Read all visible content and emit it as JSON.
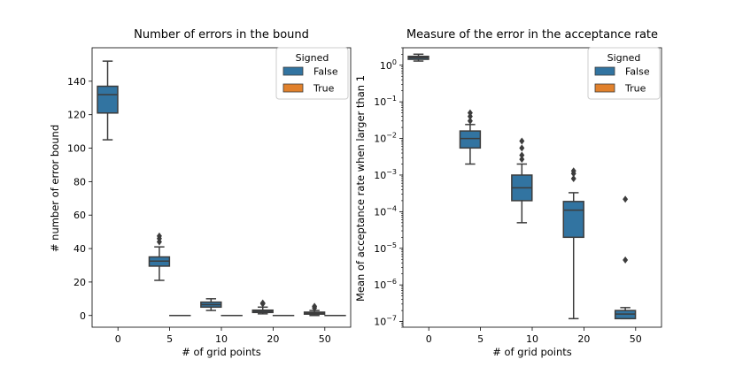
{
  "chart_data": [
    {
      "type": "box",
      "title": "Number of errors in the bound",
      "xlabel": "# of grid points",
      "ylabel": "# number of error bound",
      "yscale": "linear",
      "ylim": [
        -7,
        160
      ],
      "yticks": [
        0,
        20,
        40,
        60,
        80,
        100,
        120,
        140
      ],
      "yticklabels": [
        "0",
        "20",
        "40",
        "60",
        "80",
        "100",
        "120",
        "140"
      ],
      "categories": [
        "0",
        "5",
        "10",
        "20",
        "50"
      ],
      "legend": {
        "title": "Signed",
        "entries": [
          "False",
          "True"
        ],
        "position": "upper right"
      },
      "series": [
        {
          "name": "False",
          "color": "#3274a1",
          "boxes": [
            {
              "category": "0",
              "whislo": 105,
              "q1": 121,
              "med": 132,
              "q3": 137,
              "whishi": 152,
              "fliers": []
            },
            {
              "category": "5",
              "whislo": 21,
              "q1": 29.5,
              "med": 32.5,
              "q3": 35,
              "whishi": 41,
              "fliers": [
                44,
                46,
                47.5
              ]
            },
            {
              "category": "10",
              "whislo": 3,
              "q1": 5,
              "med": 6.5,
              "q3": 8,
              "whishi": 10,
              "fliers": []
            },
            {
              "category": "20",
              "whislo": 1,
              "q1": 1.8,
              "med": 2.5,
              "q3": 3.2,
              "whishi": 5,
              "fliers": [
                7,
                7.5
              ]
            },
            {
              "category": "50",
              "whislo": 0,
              "q1": 0.8,
              "med": 1.5,
              "q3": 2,
              "whishi": 3,
              "fliers": [
                4.5,
                5.5
              ]
            }
          ]
        },
        {
          "name": "True",
          "color": "#e1812c",
          "boxes": [
            {
              "category": "0",
              "empty": true
            },
            {
              "category": "5",
              "whislo": 0,
              "q1": 0,
              "med": 0,
              "q3": 0,
              "whishi": 0,
              "fliers": []
            },
            {
              "category": "10",
              "whislo": 0,
              "q1": 0,
              "med": 0,
              "q3": 0,
              "whishi": 0,
              "fliers": []
            },
            {
              "category": "20",
              "whislo": 0,
              "q1": 0,
              "med": 0,
              "q3": 0,
              "whishi": 0,
              "fliers": []
            },
            {
              "category": "50",
              "whislo": 0,
              "q1": 0,
              "med": 0,
              "q3": 0,
              "whishi": 0,
              "fliers": []
            }
          ]
        }
      ]
    },
    {
      "type": "box",
      "title": "Measure of the error in the acceptance rate",
      "xlabel": "# of grid points",
      "ylabel": "Mean of acceptance rate when larger than 1",
      "yscale": "log",
      "ylim": [
        7e-08,
        3
      ],
      "yticks": [
        1,
        0.1,
        0.01,
        0.001,
        0.0001,
        1e-05,
        1e-06,
        1e-07
      ],
      "yticklabels": [
        "10^0",
        "10^−1",
        "10^−2",
        "10^−3",
        "10^−4",
        "10^−5",
        "10^−6",
        "10^−7"
      ],
      "categories": [
        "0",
        "5",
        "10",
        "20",
        "50"
      ],
      "legend": {
        "title": "Signed",
        "entries": [
          "False",
          "True"
        ],
        "position": "upper right"
      },
      "series": [
        {
          "name": "False",
          "color": "#3274a1",
          "boxes": [
            {
              "category": "0",
              "whislo": 1.3,
              "q1": 1.45,
              "med": 1.6,
              "q3": 1.75,
              "whishi": 2.0,
              "fliers": []
            },
            {
              "category": "5",
              "whislo": 0.002,
              "q1": 0.0055,
              "med": 0.01,
              "q3": 0.016,
              "whishi": 0.024,
              "fliers": [
                0.03,
                0.04,
                0.05
              ]
            },
            {
              "category": "10",
              "whislo": 5e-05,
              "q1": 0.0002,
              "med": 0.00045,
              "q3": 0.001,
              "whishi": 0.002,
              "fliers": [
                0.0027,
                0.0035,
                0.0055,
                0.0085
              ]
            },
            {
              "category": "20",
              "whislo": 1.2e-07,
              "q1": 2e-05,
              "med": 0.00011,
              "q3": 0.00019,
              "whishi": 0.00033,
              "fliers": [
                0.0008,
                0.0011,
                0.0013
              ]
            },
            {
              "category": "50",
              "whislo": 1.2e-07,
              "q1": 1.2e-07,
              "med": 1.6e-07,
              "q3": 2e-07,
              "whishi": 2.4e-07,
              "fliers": [
                4.8e-06,
                0.00022
              ]
            }
          ]
        },
        {
          "name": "True",
          "color": "#e1812c",
          "boxes": []
        }
      ]
    }
  ]
}
